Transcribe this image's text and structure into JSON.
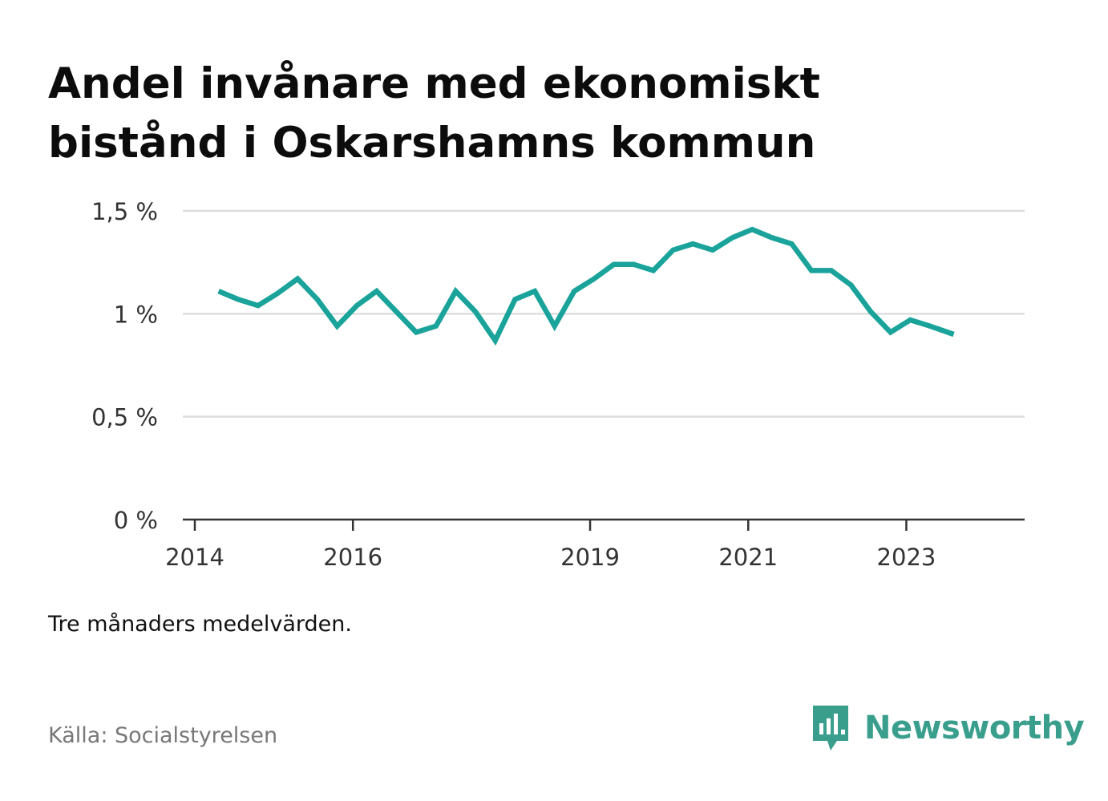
{
  "title": "Andel invånare med ekonomiskt bistånd i Oskarshamns kommun",
  "note": "Tre månaders medelvärden.",
  "source": "Källa: Socialstyrelsen",
  "brand": {
    "name": "Newsworthy",
    "color": "#3a9e8d"
  },
  "colors": {
    "line": "#1aa39a",
    "grid": "#dddddd",
    "axis": "#333333"
  },
  "chart_data": {
    "type": "line",
    "title": "Andel invånare med ekonomiskt bistånd i Oskarshamns kommun",
    "xlabel": "",
    "ylabel": "",
    "x_ticks": [
      2014,
      2016,
      2019,
      2021,
      2023
    ],
    "y_ticks": [
      {
        "value": 0,
        "label": "0 %"
      },
      {
        "value": 0.5,
        "label": "0,5 %"
      },
      {
        "value": 1,
        "label": "1 %"
      },
      {
        "value": 1.5,
        "label": "1,5 %"
      }
    ],
    "xlim": [
      2014,
      2024.05
    ],
    "ylim": [
      0,
      1.5
    ],
    "grid": true,
    "series": [
      {
        "x": [
          2014.3,
          2014.55,
          2014.8,
          2015.05,
          2015.3,
          2015.55,
          2015.8,
          2016.05,
          2016.3,
          2016.55,
          2016.8,
          2017.05,
          2017.3,
          2017.55,
          2017.8,
          2018.05,
          2018.3,
          2018.55,
          2018.8,
          2019.05,
          2019.3,
          2019.55,
          2019.8,
          2020.05,
          2020.3,
          2020.55,
          2020.8,
          2021.05,
          2021.3,
          2021.55,
          2021.8,
          2022.05,
          2022.3,
          2022.55,
          2022.8,
          2023.05,
          2023.3,
          2023.6
        ],
        "values": [
          1.11,
          1.07,
          1.04,
          1.1,
          1.17,
          1.07,
          0.94,
          1.04,
          1.11,
          1.01,
          0.91,
          0.94,
          1.11,
          1.01,
          0.87,
          1.07,
          1.11,
          0.94,
          1.11,
          1.17,
          1.24,
          1.24,
          1.21,
          1.31,
          1.34,
          1.31,
          1.37,
          1.41,
          1.37,
          1.34,
          1.21,
          1.21,
          1.14,
          1.01,
          0.91,
          0.97,
          0.94,
          0.9
        ]
      }
    ]
  }
}
